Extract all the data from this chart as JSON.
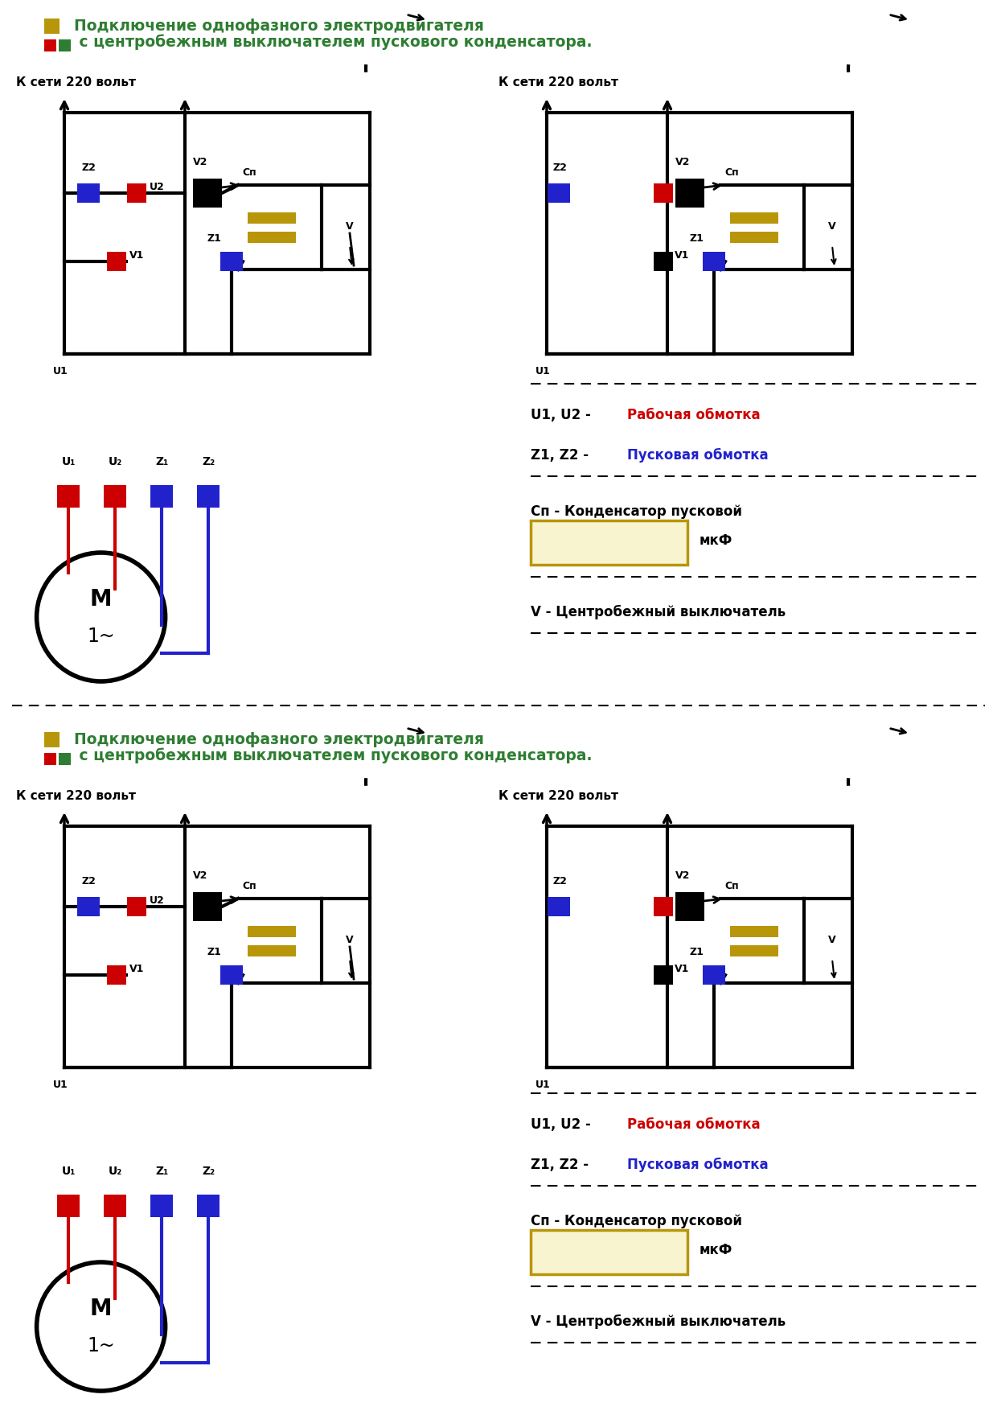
{
  "title_line1": "Подключение однофазного электродвигателя",
  "title_line2": " с центробежным выключателем пускового конденсатора.",
  "title_color": "#2e7d32",
  "bg_color": "#ffffff",
  "color_red": "#cc0000",
  "color_blue": "#2222cc",
  "color_black": "#000000",
  "color_gold": "#b8960a",
  "color_dark": "#111111",
  "color_green": "#2e7d32",
  "label_kseti": "К сети 220 вольт",
  "label_u1u2_prefix": "U1, U2 - ",
  "label_u1u2_text": "Рабочая обмотка",
  "label_z1z2_prefix": "Z1, Z2 - ",
  "label_z1z2_text": "Пусковая обмотка",
  "label_cp_full": "Сп - Конденсатор пусковой",
  "label_mkf": "мкФ",
  "label_v_full": "V - Центробежный выключатель",
  "section_sep": 0.502
}
